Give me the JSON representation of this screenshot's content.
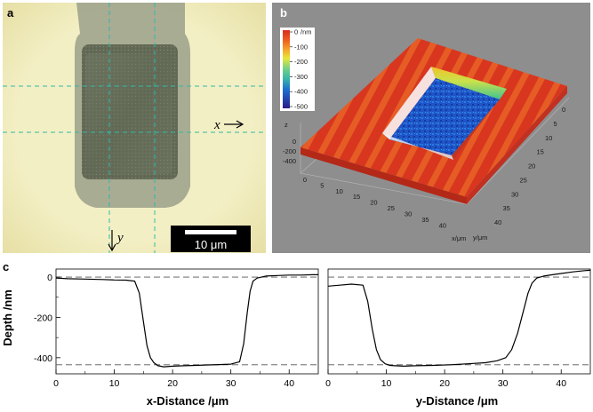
{
  "panels": {
    "a": {
      "letter": "a",
      "x_annot": "x",
      "y_annot": "y",
      "scale_bar": "10 μm"
    },
    "b": {
      "letter": "b",
      "colorbar_unit": "/nm",
      "colorbar_ticks": [
        "0",
        "-100",
        "-200",
        "-300",
        "-400",
        "-500"
      ],
      "z_axis_label": "z",
      "z_ticks": [
        "0",
        "-200",
        "-400"
      ],
      "x_ticks": [
        "0",
        "5",
        "10",
        "15",
        "20",
        "25",
        "30",
        "35",
        "40"
      ],
      "x_unit": "x/μm",
      "y_ticks": [
        "0",
        "5",
        "10",
        "15",
        "20",
        "25",
        "30",
        "35",
        "40"
      ],
      "y_unit": "y/μm",
      "colors": {
        "0": "#d62a1c",
        "-100": "#f28a1f",
        "-200": "#e8e63a",
        "-300": "#5cc98a",
        "-400": "#1b6fcf",
        "-500": "#2a1c8a"
      }
    },
    "c": {
      "letter": "c"
    }
  },
  "chart_data": [
    {
      "type": "line",
      "xlabel": "x-Distance /μm",
      "ylabel": "Depth /nm",
      "xlim": [
        0,
        45
      ],
      "ylim": [
        -480,
        40
      ],
      "xticks": [
        0,
        10,
        20,
        30,
        40
      ],
      "yticks": [
        0,
        -200,
        -400
      ],
      "reference_lines": [
        0,
        -435
      ],
      "x": [
        0,
        2,
        5,
        8,
        10,
        12,
        13.5,
        14.3,
        15,
        15.6,
        16.2,
        16.8,
        17.5,
        18.5,
        20,
        22,
        24,
        26,
        28,
        30,
        31.5,
        32.2,
        32.8,
        33.3,
        33.8,
        34.5,
        36,
        38,
        40,
        42,
        44,
        45
      ],
      "y": [
        -5,
        -8,
        -10,
        -12,
        -14,
        -15,
        -20,
        -80,
        -220,
        -340,
        -400,
        -425,
        -440,
        -445,
        -442,
        -440,
        -438,
        -436,
        -434,
        -432,
        -420,
        -330,
        -180,
        -70,
        -20,
        -5,
        5,
        8,
        10,
        10,
        12,
        12
      ]
    },
    {
      "type": "line",
      "xlabel": "y-Distance /μm",
      "ylabel": "",
      "xlim": [
        0,
        45
      ],
      "ylim": [
        -480,
        40
      ],
      "xticks": [
        0,
        10,
        20,
        30,
        40
      ],
      "yticks": [],
      "reference_lines": [
        0,
        -435
      ],
      "x": [
        0,
        2,
        4,
        6,
        6.8,
        7.6,
        8.3,
        9,
        9.8,
        10.6,
        11.5,
        13,
        15,
        18,
        21,
        24,
        27,
        29,
        30.5,
        31.5,
        32.5,
        33.5,
        34.3,
        35,
        35.8,
        37,
        38.5,
        40,
        42,
        44,
        45
      ],
      "y": [
        -45,
        -40,
        -35,
        -40,
        -120,
        -260,
        -360,
        -410,
        -430,
        -438,
        -440,
        -442,
        -440,
        -438,
        -435,
        -430,
        -425,
        -415,
        -400,
        -360,
        -280,
        -170,
        -80,
        -30,
        -5,
        5,
        12,
        18,
        26,
        32,
        34
      ]
    }
  ]
}
